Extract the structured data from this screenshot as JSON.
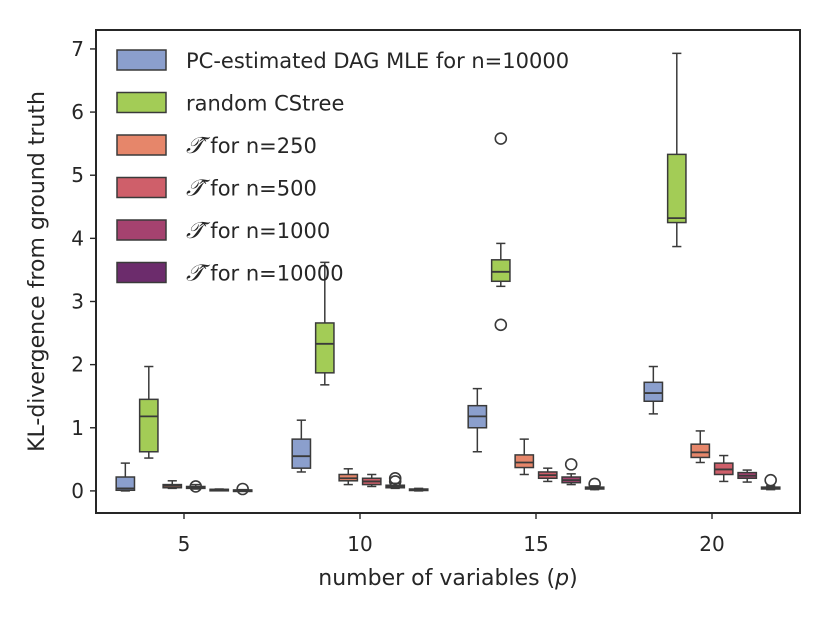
{
  "chart_data": {
    "type": "boxplot",
    "xlabel_prefix": "number of variables (",
    "xlabel_var": "p",
    "xlabel_suffix": ")",
    "ylabel": "KL-divergence from ground truth",
    "categories": [
      "5",
      "10",
      "15",
      "20"
    ],
    "yticks": [
      "0",
      "1",
      "2",
      "3",
      "4",
      "5",
      "6",
      "7"
    ],
    "ylim": [
      -0.35,
      7.3
    ],
    "legend_position": "top-left",
    "tau_symbol": "𝒯̂",
    "series": [
      {
        "name": "PC-estimated DAG MLE for n=10000",
        "label_symbol": "",
        "label_text": "PC-estimated DAG MLE for n=10000",
        "color": "#8b9fcd",
        "boxes": [
          {
            "whislo": 0.0,
            "q1": 0.01,
            "med": 0.04,
            "q3": 0.22,
            "whishi": 0.44,
            "fliers": []
          },
          {
            "whislo": 0.3,
            "q1": 0.36,
            "med": 0.55,
            "q3": 0.82,
            "whishi": 1.12,
            "fliers": []
          },
          {
            "whislo": 0.62,
            "q1": 1.0,
            "med": 1.18,
            "q3": 1.35,
            "whishi": 1.62,
            "fliers": []
          },
          {
            "whislo": 1.22,
            "q1": 1.42,
            "med": 1.55,
            "q3": 1.72,
            "whishi": 1.97,
            "fliers": []
          }
        ]
      },
      {
        "name": "random CStree",
        "label_symbol": "",
        "label_text": "random CStree",
        "color": "#a3cc56",
        "boxes": [
          {
            "whislo": 0.52,
            "q1": 0.62,
            "med": 1.18,
            "q3": 1.45,
            "whishi": 1.97,
            "fliers": []
          },
          {
            "whislo": 1.68,
            "q1": 1.87,
            "med": 2.33,
            "q3": 2.66,
            "whishi": 3.62,
            "fliers": []
          },
          {
            "whislo": 3.24,
            "q1": 3.32,
            "med": 3.47,
            "q3": 3.66,
            "whishi": 3.92,
            "fliers": [
              5.58,
              2.63
            ]
          },
          {
            "whislo": 3.87,
            "q1": 4.25,
            "med": 4.32,
            "q3": 5.33,
            "whishi": 6.93,
            "fliers": []
          }
        ]
      },
      {
        "name": "T-hat for n=250",
        "label_symbol": "𝒯̂",
        "label_text": " for n=250",
        "color": "#e6866a",
        "boxes": [
          {
            "whislo": 0.04,
            "q1": 0.05,
            "med": 0.08,
            "q3": 0.1,
            "whishi": 0.16,
            "fliers": []
          },
          {
            "whislo": 0.1,
            "q1": 0.16,
            "med": 0.2,
            "q3": 0.26,
            "whishi": 0.35,
            "fliers": []
          },
          {
            "whislo": 0.26,
            "q1": 0.37,
            "med": 0.45,
            "q3": 0.57,
            "whishi": 0.82,
            "fliers": []
          },
          {
            "whislo": 0.45,
            "q1": 0.53,
            "med": 0.61,
            "q3": 0.74,
            "whishi": 0.95,
            "fliers": []
          }
        ]
      },
      {
        "name": "T-hat for n=500",
        "label_symbol": "𝒯̂",
        "label_text": " for n=500",
        "color": "#cf5f6a",
        "boxes": [
          {
            "whislo": 0.03,
            "q1": 0.04,
            "med": 0.06,
            "q3": 0.07,
            "whishi": 0.1,
            "fliers": [
              0.07
            ]
          },
          {
            "whislo": 0.07,
            "q1": 0.1,
            "med": 0.15,
            "q3": 0.2,
            "whishi": 0.26,
            "fliers": []
          },
          {
            "whislo": 0.15,
            "q1": 0.2,
            "med": 0.25,
            "q3": 0.3,
            "whishi": 0.36,
            "fliers": []
          },
          {
            "whislo": 0.15,
            "q1": 0.26,
            "med": 0.34,
            "q3": 0.44,
            "whishi": 0.56,
            "fliers": []
          }
        ]
      },
      {
        "name": "T-hat for n=1000",
        "label_symbol": "𝒯̂",
        "label_text": " for n=1000",
        "color": "#a5426f",
        "boxes": [
          {
            "whislo": 0.01,
            "q1": 0.015,
            "med": 0.02,
            "q3": 0.025,
            "whishi": 0.03,
            "fliers": []
          },
          {
            "whislo": 0.04,
            "q1": 0.05,
            "med": 0.07,
            "q3": 0.09,
            "whishi": 0.12,
            "fliers": [
              0.2,
              0.15
            ]
          },
          {
            "whislo": 0.1,
            "q1": 0.13,
            "med": 0.17,
            "q3": 0.22,
            "whishi": 0.27,
            "fliers": [
              0.42
            ]
          },
          {
            "whislo": 0.14,
            "q1": 0.2,
            "med": 0.24,
            "q3": 0.29,
            "whishi": 0.33,
            "fliers": []
          }
        ]
      },
      {
        "name": "T-hat for n=10000",
        "label_symbol": "𝒯̂",
        "label_text": " for n=10000",
        "color": "#6c2c6c",
        "boxes": [
          {
            "whislo": 0.0,
            "q1": 0.005,
            "med": 0.01,
            "q3": 0.015,
            "whishi": 0.02,
            "fliers": [
              0.03
            ]
          },
          {
            "whislo": 0.0,
            "q1": 0.01,
            "med": 0.02,
            "q3": 0.03,
            "whishi": 0.04,
            "fliers": []
          },
          {
            "whislo": 0.02,
            "q1": 0.03,
            "med": 0.05,
            "q3": 0.06,
            "whishi": 0.08,
            "fliers": [
              0.11
            ]
          },
          {
            "whislo": 0.02,
            "q1": 0.03,
            "med": 0.05,
            "q3": 0.06,
            "whishi": 0.08,
            "fliers": [
              0.17
            ]
          }
        ]
      }
    ]
  }
}
